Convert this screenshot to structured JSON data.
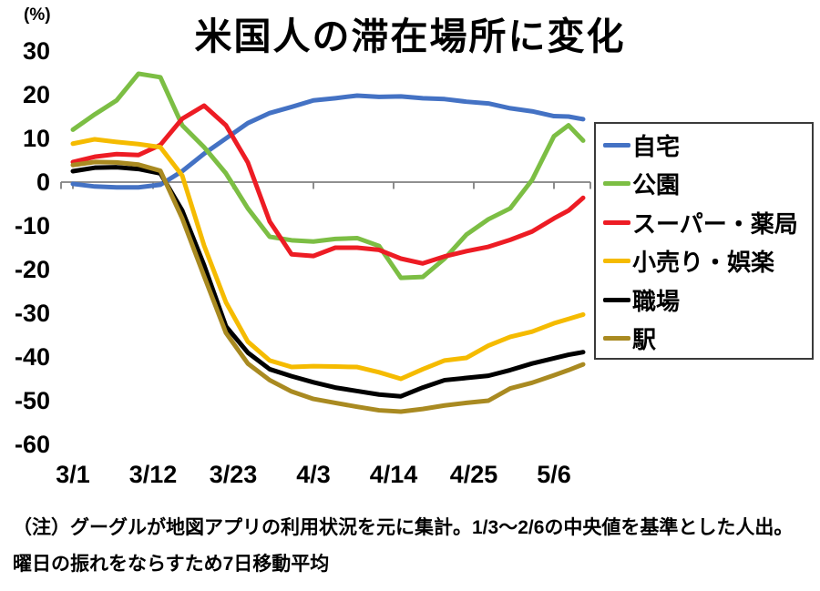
{
  "note": {
    "text": "（注）グーグルが地図アプリの利用状況を元に集計。1/3〜2/6の中央値を基準とした人出。曜日の振れをならすため7日移動平均"
  },
  "chart_data": {
    "type": "line",
    "title": "米国人の滞在場所に変化",
    "unit_label": "(%)",
    "grid": false,
    "legend_position": "right",
    "ylim": [
      -60,
      30
    ],
    "y_ticks": [
      30,
      20,
      10,
      0,
      -10,
      -20,
      -30,
      -40,
      -50,
      -60
    ],
    "x_tick_labels": [
      "3/1",
      "3/12",
      "3/23",
      "4/3",
      "4/14",
      "4/25",
      "5/6"
    ],
    "x_tick_day_offsets": [
      0,
      11,
      22,
      33,
      44,
      55,
      66
    ],
    "x_dates": [
      "3/1",
      "3/4",
      "3/7",
      "3/10",
      "3/13",
      "3/16",
      "3/19",
      "3/22",
      "3/25",
      "3/28",
      "3/31",
      "4/3",
      "4/6",
      "4/9",
      "4/12",
      "4/15",
      "4/18",
      "4/21",
      "4/24",
      "4/27",
      "4/30",
      "5/3",
      "5/6",
      "5/8",
      "5/10"
    ],
    "x_day_offsets": [
      0,
      3,
      6,
      9,
      12,
      15,
      18,
      21,
      24,
      27,
      30,
      33,
      36,
      39,
      42,
      45,
      48,
      51,
      54,
      57,
      60,
      63,
      66,
      68,
      70
    ],
    "axis_color": "#808080",
    "series": [
      {
        "key": "home",
        "name": "自宅",
        "color": "#4472C4",
        "values": [
          -0.4,
          -1,
          -1.2,
          -1.2,
          -0.6,
          2.5,
          6.5,
          10,
          13.5,
          15.8,
          17.2,
          18.7,
          19.2,
          19.8,
          19.5,
          19.6,
          19.2,
          19,
          18.4,
          18,
          16.9,
          16.2,
          15.1,
          15,
          14.4
        ]
      },
      {
        "key": "park",
        "name": "公園",
        "color": "#7CBE44",
        "values": [
          12,
          15.5,
          18.7,
          24.8,
          24,
          13,
          8,
          2,
          -6,
          -12.5,
          -13.3,
          -13.6,
          -13,
          -12.8,
          -14.6,
          -21.9,
          -21.7,
          -17.5,
          -12,
          -8.5,
          -6,
          0.5,
          10.5,
          13,
          9.5
        ]
      },
      {
        "key": "super-pharmacy",
        "name": "スーパー・薬局",
        "color": "#ED1C24",
        "values": [
          4.6,
          5.8,
          6.4,
          6.2,
          8.5,
          14.5,
          17.5,
          13,
          4.5,
          -9,
          -16.5,
          -16.9,
          -15,
          -15,
          -15.5,
          -17.5,
          -18.6,
          -17,
          -15.8,
          -14.8,
          -13.2,
          -11.3,
          -8.3,
          -6.5,
          -3.6
        ]
      },
      {
        "key": "retail-entertainment",
        "name": "小売り・娯楽",
        "color": "#F5BB00",
        "values": [
          8.8,
          9.8,
          9.2,
          8.7,
          8,
          1.5,
          -14.5,
          -27.5,
          -36.5,
          -40.8,
          -42.3,
          -42.1,
          -42.2,
          -42.3,
          -43.5,
          -45,
          -42.8,
          -40.8,
          -40.2,
          -37.4,
          -35.4,
          -34.2,
          -32.3,
          -31.3,
          -30.3
        ]
      },
      {
        "key": "workplace",
        "name": "職場",
        "color": "#000000",
        "values": [
          2.5,
          3.3,
          3.4,
          3,
          2,
          -6.5,
          -19,
          -33,
          -39,
          -42.8,
          -44.4,
          -45.8,
          -47,
          -47.8,
          -48.6,
          -49,
          -47,
          -45.3,
          -44.8,
          -44.3,
          -43,
          -41.5,
          -40.3,
          -39.5,
          -38.9
        ]
      },
      {
        "key": "station",
        "name": "駅",
        "color": "#A98A21",
        "values": [
          3.9,
          4.6,
          4.5,
          4,
          2.6,
          -8.3,
          -21.5,
          -34.5,
          -41.5,
          -45.3,
          -47.9,
          -49.6,
          -50.5,
          -51.4,
          -52.2,
          -52.5,
          -51.9,
          -51.1,
          -50.5,
          -50,
          -47.2,
          -45.9,
          -44.2,
          -43,
          -41.7
        ]
      }
    ]
  }
}
